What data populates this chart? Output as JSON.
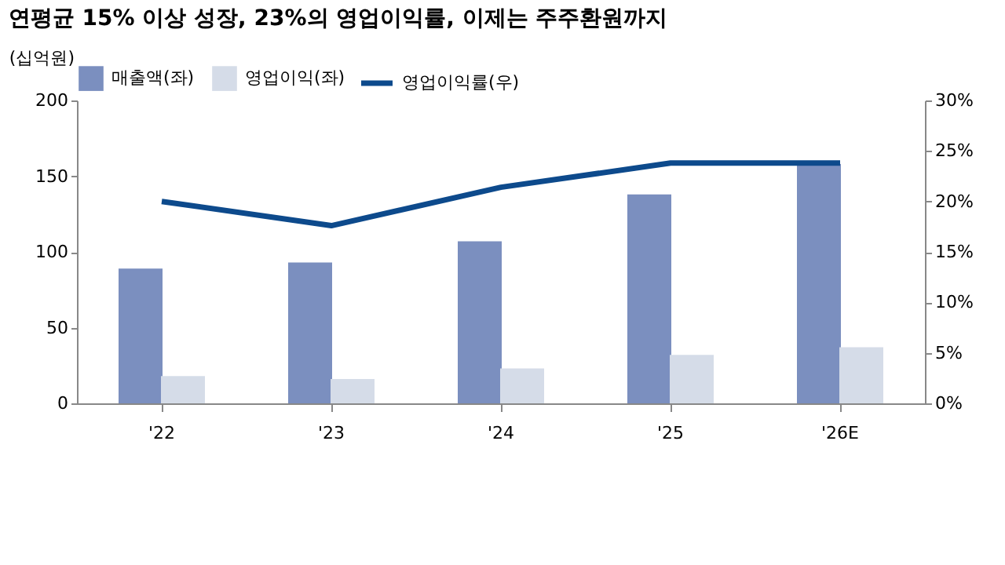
{
  "chart_data": {
    "type": "bar",
    "title": "연평균 15% 이상 성장, 23%의 영업이익률, 이제는 주주환원까지",
    "ylabel": "(십억원)",
    "categories": [
      "'22",
      "'23",
      "'24",
      "'25",
      "'26E"
    ],
    "series": [
      {
        "name": "매출액(좌)",
        "color": "#7b8fbf",
        "values": [
          89,
          93,
          107,
          138,
          158
        ]
      },
      {
        "name": "영업이익(좌)",
        "color": "#d5dce8",
        "values": [
          18,
          16,
          23,
          32,
          37
        ]
      },
      {
        "name": "영업이익률(우)",
        "type": "line",
        "axis": "y2",
        "color": "#0d4a8c",
        "values": [
          20.0,
          17.6,
          21.4,
          23.8,
          23.8
        ]
      }
    ],
    "ylim": [
      0,
      200
    ],
    "yticks": [
      0,
      50,
      100,
      150,
      200
    ],
    "y2lim": [
      0,
      30
    ],
    "y2ticks": [
      {
        "value": 0,
        "label": "0%"
      },
      {
        "value": 5,
        "label": "5%"
      },
      {
        "value": 10,
        "label": "10%"
      },
      {
        "value": 15,
        "label": "15%"
      },
      {
        "value": 20,
        "label": "20%"
      },
      {
        "value": 25,
        "label": "25%"
      },
      {
        "value": 30,
        "label": "30%"
      }
    ],
    "grid": false,
    "legend": "top"
  }
}
